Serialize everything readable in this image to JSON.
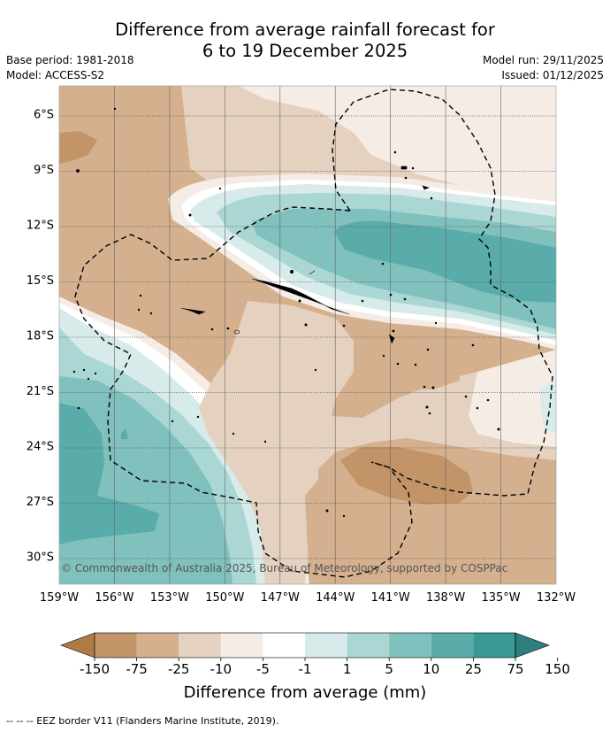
{
  "header": {
    "title_line1": "Difference from average rainfall forecast for",
    "title_line2": "6 to 19 December 2025",
    "base_period": "Base period: 1981-2018",
    "model": "Model: ACCESS-S2",
    "model_run": "Model run: 29/11/2025",
    "issued": "Issued: 01/12/2025"
  },
  "copyright": "© Commonwealth of Australia 2025, Bureau of Meteorology, supported by COSPPac",
  "footnote": "-- -- -- EEZ border V11 (Flanders Marine Institute, 2019).",
  "chart_data": {
    "type": "heatmap",
    "title": "Difference from average rainfall forecast for 6 to 19 December 2025",
    "variable": "Difference from average (mm)",
    "x_ticks": [
      "159°W",
      "156°W",
      "153°W",
      "150°W",
      "147°W",
      "144°W",
      "141°W",
      "138°W",
      "135°W",
      "132°W"
    ],
    "y_ticks": [
      "6°S",
      "9°S",
      "12°S",
      "15°S",
      "18°S",
      "21°S",
      "24°S",
      "27°S",
      "30°S"
    ],
    "lon_range": [
      -159,
      -132
    ],
    "lat_range": [
      -31.5,
      -4.5
    ],
    "colorbar": {
      "labels": [
        "-150",
        "-75",
        "-25",
        "-10",
        "-5",
        "-1",
        "1",
        "5",
        "10",
        "25",
        "75",
        "150"
      ],
      "colors": [
        "#b07a45",
        "#c29468",
        "#d4b08f",
        "#e5d1bf",
        "#f5ece6",
        "#ffffff",
        "#d6ebea",
        "#aad6d4",
        "#80c0bd",
        "#5aacaa",
        "#389995",
        "#2d807d"
      ],
      "title": "Difference from average (mm)"
    }
  }
}
